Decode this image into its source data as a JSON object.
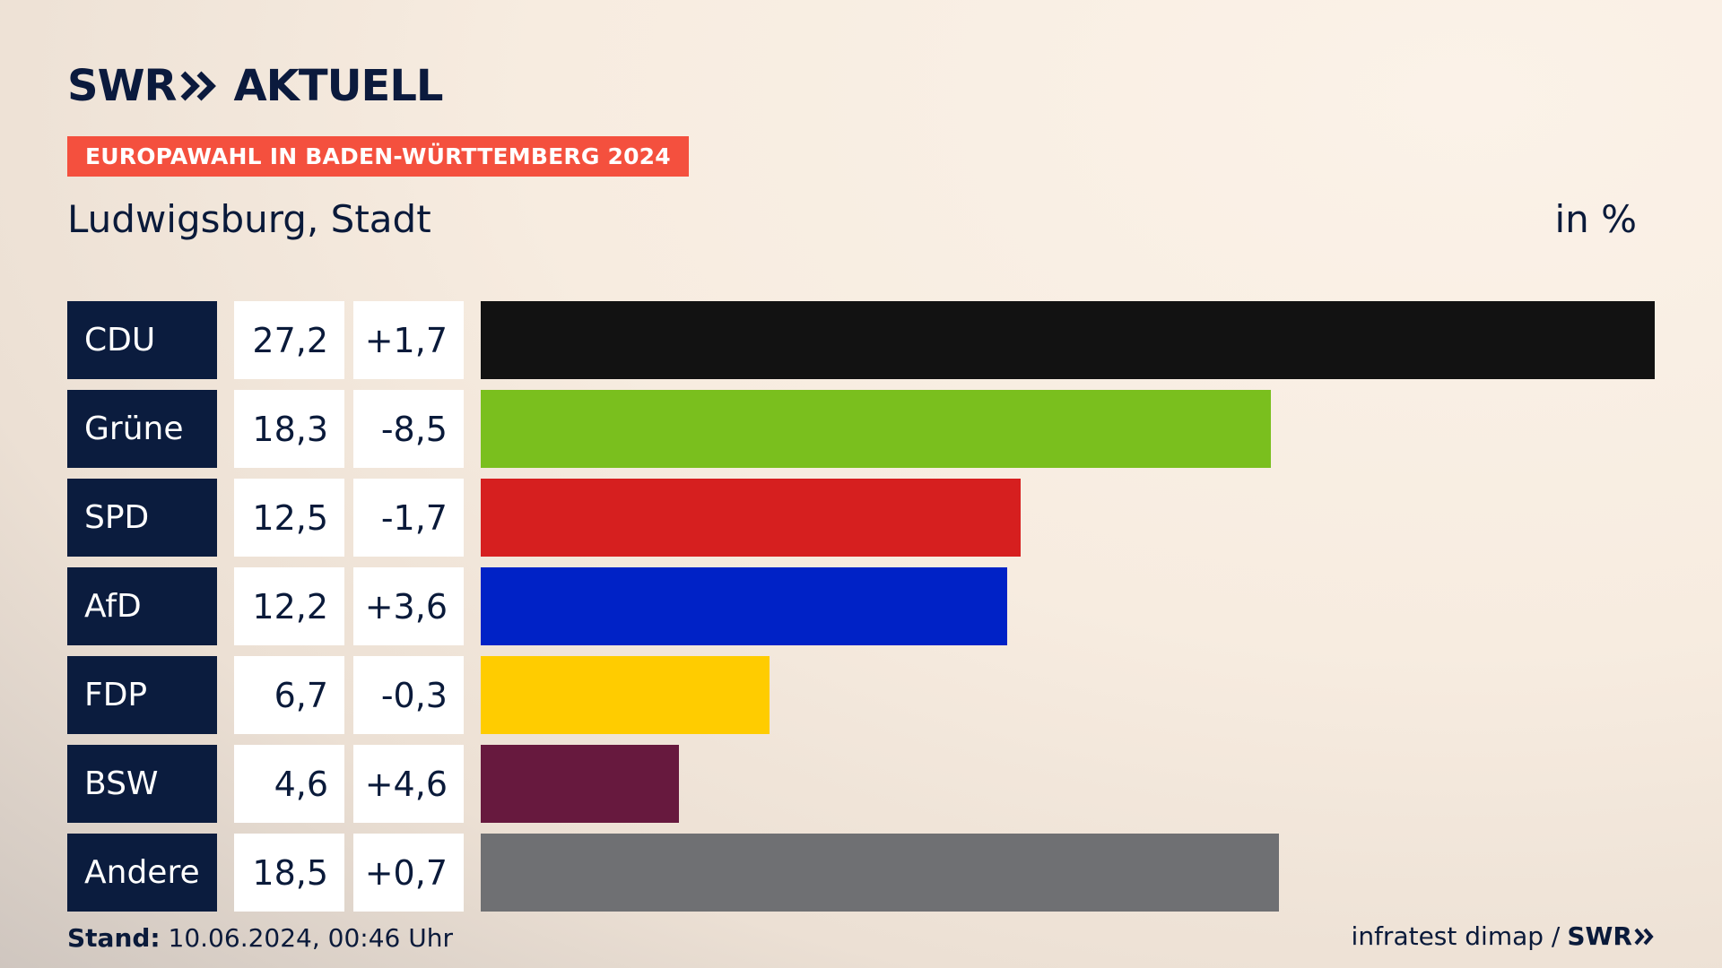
{
  "brand": {
    "logo_left": "SWR",
    "logo_right": "AKTUELL",
    "colors": {
      "navy": "#0b1c3e",
      "badge": "#f4503e"
    }
  },
  "badge": "EUROPAWAHL IN BADEN-WÜRTTEMBERG 2024",
  "place": "Ludwigsburg, Stadt",
  "unit": "in %",
  "chart_data": {
    "type": "bar",
    "orientation": "horizontal",
    "title": "Europawahl in Baden-Württemberg 2024 – Ludwigsburg, Stadt",
    "unit": "in %",
    "categories": [
      "CDU",
      "Grüne",
      "SPD",
      "AfD",
      "FDP",
      "BSW",
      "Andere"
    ],
    "value_labels": [
      "27,2",
      "18,3",
      "12,5",
      "12,2",
      "6,7",
      "4,6",
      "18,5"
    ],
    "values": [
      27.2,
      18.3,
      12.5,
      12.2,
      6.7,
      4.6,
      18.5
    ],
    "change_labels": [
      "+1,7",
      "-8,5",
      "-1,7",
      "+3,6",
      "-0,3",
      "+4,6",
      "+0,7"
    ],
    "changes": [
      1.7,
      -8.5,
      -1.7,
      3.6,
      -0.3,
      4.6,
      0.7
    ],
    "colors": [
      "#121212",
      "#7abf1e",
      "#d61f1f",
      "#0022c6",
      "#ffcc00",
      "#67193e",
      "#6f7073"
    ],
    "xlim": [
      0,
      27.2
    ]
  },
  "footer": {
    "stand_label": "Stand:",
    "stand_value": "10.06.2024, 00:46 Uhr",
    "source": "infratest dimap /",
    "source_brand": "SWR"
  }
}
